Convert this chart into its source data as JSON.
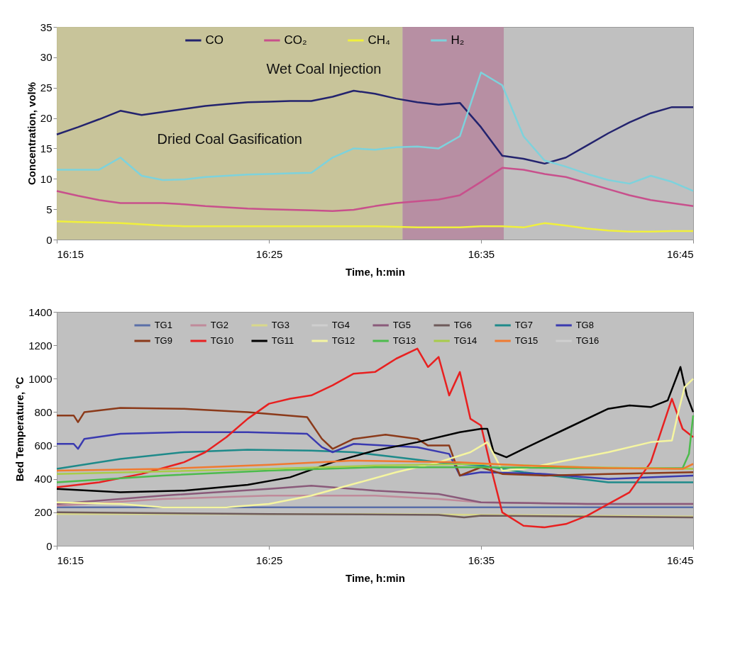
{
  "chart_data": [
    {
      "type": "line",
      "xlabel": "Time, h:min",
      "ylabel": "Concentration, vol%",
      "legend": "top",
      "grid": false,
      "xlim": [
        16.25,
        16.75
      ],
      "xticks": [
        {
          "value": 16.25,
          "label": "16:15"
        },
        {
          "value": 16.4167,
          "label": "16:25"
        },
        {
          "value": 16.5833,
          "label": "16:35"
        },
        {
          "value": 16.75,
          "label": "16:45"
        }
      ],
      "ylim": [
        0,
        35
      ],
      "yticks": [
        0,
        5,
        10,
        15,
        20,
        25,
        30,
        35
      ],
      "x": [
        16.25,
        16.2667,
        16.2833,
        16.3,
        16.3167,
        16.3333,
        16.35,
        16.3667,
        16.3833,
        16.4,
        16.4167,
        16.4333,
        16.45,
        16.4667,
        16.4833,
        16.5,
        16.5167,
        16.5333,
        16.55,
        16.5667,
        16.5833,
        16.6,
        16.6167,
        16.6333,
        16.65,
        16.6667,
        16.6833,
        16.7,
        16.7167,
        16.7333,
        16.75
      ],
      "bands": [
        {
          "axis": "x",
          "from": 16.25,
          "to": 16.5217,
          "label": "Dried Coal Gasification",
          "color": "#c9c493"
        },
        {
          "axis": "x",
          "from": 16.5217,
          "to": 16.6012,
          "label": "Wet Coal Injection",
          "color": "#b5869e"
        }
      ],
      "series": [
        {
          "name": "CO",
          "color": "#23236e",
          "values": [
            17.3,
            18.5,
            19.8,
            21.2,
            20.5,
            21,
            21.5,
            22,
            22.3,
            22.6,
            22.7,
            22.8,
            22.8,
            23.5,
            24.5,
            24,
            23.2,
            22.6,
            22.2,
            22.5,
            18.5,
            13.8,
            13.3,
            12.5,
            13.5,
            15.5,
            17.5,
            19.3,
            20.8,
            21.8,
            21.8
          ]
        },
        {
          "name": "CO₂",
          "color": "#c8508c",
          "values": [
            8,
            7.2,
            6.5,
            6,
            6,
            6,
            5.8,
            5.5,
            5.3,
            5.1,
            5,
            4.9,
            4.8,
            4.7,
            4.9,
            5.5,
            6,
            6.3,
            6.6,
            7.3,
            9.5,
            11.8,
            11.5,
            10.8,
            10.3,
            9.3,
            8.3,
            7.3,
            6.5,
            6,
            5.5
          ]
        },
        {
          "name": "CH₄",
          "color": "#f0f03c",
          "values": [
            3,
            2.9,
            2.8,
            2.7,
            2.5,
            2.3,
            2.2,
            2.2,
            2.2,
            2.2,
            2.2,
            2.2,
            2.2,
            2.2,
            2.2,
            2.2,
            2.1,
            2,
            2,
            2,
            2.2,
            2.2,
            2,
            2.7,
            2.3,
            1.8,
            1.5,
            1.3,
            1.3,
            1.4,
            1.4
          ]
        },
        {
          "name": "H₂",
          "color": "#7dd2dc",
          "values": [
            11.5,
            11.5,
            11.5,
            13.5,
            10.5,
            9.8,
            9.9,
            10.3,
            10.5,
            10.7,
            10.8,
            10.9,
            11,
            13.5,
            15,
            14.8,
            15.2,
            15.3,
            15,
            17,
            27.5,
            25.4,
            17,
            13,
            12,
            10.8,
            9.8,
            9.2,
            10.5,
            9.5,
            8
          ]
        }
      ]
    },
    {
      "type": "line",
      "xlabel": "Time, h:min",
      "ylabel": "Bed Temperature, °C",
      "legend": "top",
      "grid": false,
      "xlim": [
        16.25,
        16.75
      ],
      "xticks": [
        {
          "value": 16.25,
          "label": "16:15"
        },
        {
          "value": 16.4167,
          "label": "16:25"
        },
        {
          "value": 16.5833,
          "label": "16:35"
        },
        {
          "value": 16.75,
          "label": "16:45"
        }
      ],
      "ylim": [
        0,
        1400
      ],
      "yticks": [
        0,
        200,
        400,
        600,
        800,
        1000,
        1200,
        1400
      ],
      "x": [
        16.25,
        16.4167,
        16.5833,
        16.75
      ],
      "series": [
        {
          "name": "TG1",
          "color": "#5a6fa8",
          "values": [
            230,
            230,
            230,
            230
          ]
        },
        {
          "name": "TG2",
          "color": "#c08a9a",
          "x": [
            16.25,
            16.3333,
            16.4167,
            16.5,
            16.55,
            16.5833,
            16.6667,
            16.75
          ],
          "values": [
            240,
            280,
            300,
            300,
            280,
            260,
            250,
            250
          ]
        },
        {
          "name": "TG3",
          "color": "#d8d88a",
          "x": [
            16.25,
            16.5,
            16.75
          ],
          "values": [
            190,
            190,
            175
          ]
        },
        {
          "name": "TG4",
          "color": "#cfcfcf",
          "values": [
            null,
            null,
            null,
            null
          ]
        },
        {
          "name": "TG5",
          "color": "#8a5a7a",
          "x": [
            16.25,
            16.3333,
            16.4167,
            16.45,
            16.5,
            16.55,
            16.5833,
            16.6667,
            16.75
          ],
          "values": [
            250,
            300,
            340,
            360,
            330,
            310,
            260,
            250,
            250
          ]
        },
        {
          "name": "TG6",
          "color": "#6e5a5a",
          "x": [
            16.25,
            16.4167,
            16.55,
            16.57,
            16.5833,
            16.75
          ],
          "values": [
            200,
            190,
            185,
            170,
            180,
            170
          ]
        },
        {
          "name": "TG7",
          "color": "#1e8a8a",
          "x": [
            16.25,
            16.3,
            16.35,
            16.4,
            16.45,
            16.4833,
            16.5167,
            16.55,
            16.5833,
            16.6167,
            16.65,
            16.6833,
            16.75
          ],
          "values": [
            460,
            520,
            560,
            575,
            570,
            560,
            530,
            500,
            480,
            440,
            410,
            380,
            380
          ]
        },
        {
          "name": "TG8",
          "color": "#3a3ab0",
          "x": [
            16.25,
            16.2633,
            16.2667,
            16.2717,
            16.3,
            16.35,
            16.4,
            16.4467,
            16.4583,
            16.4667,
            16.4833,
            16.5333,
            16.5583,
            16.5667,
            16.5833,
            16.6333,
            16.6833,
            16.75
          ],
          "values": [
            610,
            610,
            580,
            640,
            670,
            680,
            680,
            670,
            590,
            560,
            610,
            590,
            550,
            420,
            440,
            430,
            400,
            420
          ]
        },
        {
          "name": "TG9",
          "color": "#8b3a1a",
          "x": [
            16.25,
            16.2633,
            16.2667,
            16.2717,
            16.3,
            16.35,
            16.4,
            16.4467,
            16.4583,
            16.4667,
            16.4833,
            16.5083,
            16.5333,
            16.5417,
            16.5583,
            16.5667,
            16.5833,
            16.6,
            16.6333,
            16.6833,
            16.75
          ],
          "values": [
            780,
            780,
            740,
            800,
            825,
            820,
            800,
            770,
            640,
            580,
            640,
            665,
            640,
            600,
            600,
            420,
            470,
            430,
            420,
            430,
            440
          ]
        },
        {
          "name": "TG10",
          "color": "#e82020",
          "x": [
            16.25,
            16.2833,
            16.3167,
            16.35,
            16.3667,
            16.3833,
            16.4,
            16.4167,
            16.4333,
            16.45,
            16.4667,
            16.4833,
            16.5,
            16.5167,
            16.5333,
            16.5417,
            16.55,
            16.5583,
            16.5667,
            16.575,
            16.5833,
            16.5917,
            16.6,
            16.6167,
            16.6333,
            16.65,
            16.6667,
            16.6833,
            16.7,
            16.7167,
            16.7333,
            16.7417,
            16.75
          ],
          "values": [
            350,
            380,
            430,
            500,
            560,
            650,
            760,
            850,
            880,
            900,
            960,
            1030,
            1040,
            1120,
            1180,
            1070,
            1130,
            900,
            1040,
            760,
            720,
            450,
            200,
            120,
            110,
            130,
            180,
            250,
            320,
            500,
            880,
            700,
            650
          ]
        },
        {
          "name": "TG11",
          "color": "#000000",
          "x": [
            16.25,
            16.3,
            16.35,
            16.4,
            16.4333,
            16.4667,
            16.5,
            16.5333,
            16.5667,
            16.5833,
            16.5883,
            16.5933,
            16.6033,
            16.6167,
            16.65,
            16.6833,
            16.7,
            16.7167,
            16.73,
            16.74,
            16.745,
            16.75
          ],
          "values": [
            340,
            320,
            330,
            365,
            410,
            500,
            570,
            620,
            680,
            700,
            700,
            560,
            530,
            580,
            700,
            820,
            840,
            830,
            870,
            1070,
            900,
            800
          ]
        },
        {
          "name": "TG12",
          "color": "#f5f5a0",
          "x": [
            16.25,
            16.3,
            16.3333,
            16.3833,
            16.4167,
            16.45,
            16.4833,
            16.5167,
            16.55,
            16.575,
            16.5883,
            16.6,
            16.6167,
            16.65,
            16.6833,
            16.7167,
            16.7333,
            16.7383,
            16.7433,
            16.75
          ],
          "values": [
            260,
            250,
            230,
            230,
            250,
            300,
            370,
            440,
            500,
            560,
            620,
            450,
            460,
            510,
            560,
            620,
            630,
            800,
            950,
            1000
          ]
        },
        {
          "name": "TG13",
          "color": "#4cbb4c",
          "x": [
            16.25,
            16.3333,
            16.4167,
            16.5,
            16.5833,
            16.6667,
            16.7417,
            16.7467,
            16.75
          ],
          "values": [
            380,
            420,
            450,
            470,
            470,
            465,
            465,
            550,
            780
          ]
        },
        {
          "name": "TG14",
          "color": "#a8cc4a",
          "x": [
            16.25,
            16.4167,
            16.5,
            16.5833,
            16.6667,
            16.75
          ],
          "values": [
            430,
            460,
            480,
            490,
            470,
            460
          ]
        },
        {
          "name": "TG15",
          "color": "#f07a30",
          "x": [
            16.25,
            16.3333,
            16.4167,
            16.4833,
            16.5667,
            16.6167,
            16.6833,
            16.7417,
            16.75
          ],
          "values": [
            450,
            460,
            485,
            510,
            500,
            480,
            465,
            460,
            490
          ]
        },
        {
          "name": "TG16",
          "color": "#cfcfcf",
          "values": [
            null,
            null,
            null,
            null
          ]
        }
      ]
    }
  ]
}
